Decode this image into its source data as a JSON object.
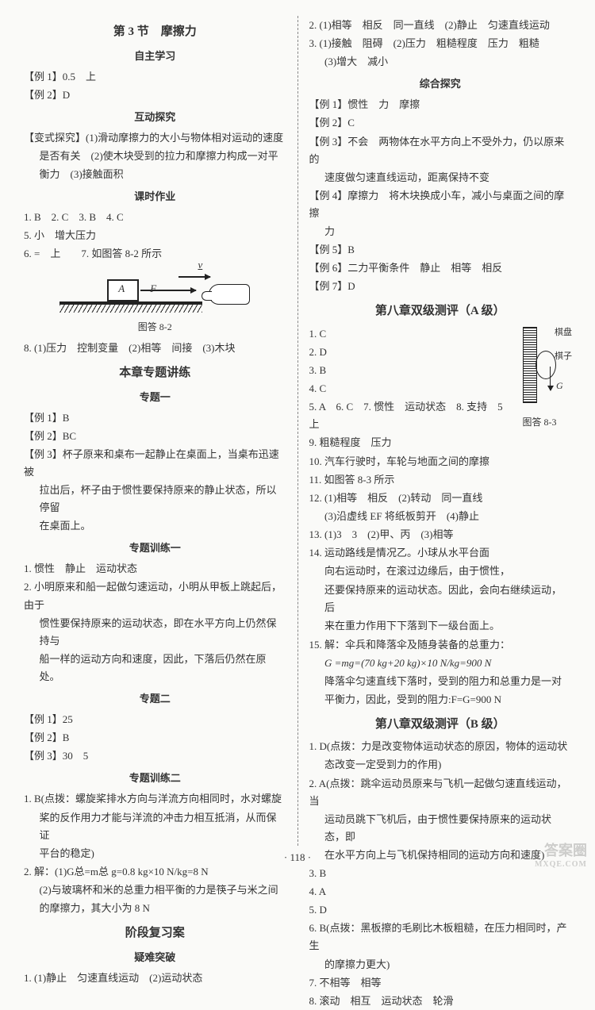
{
  "left": {
    "section_title": "第 3 节　摩擦力",
    "sub1": "自主学习",
    "ex1": "【例 1】0.5　上",
    "ex2": "【例 2】D",
    "sub2": "互动探究",
    "bianshi_l1": "【变式探究】(1)滑动摩擦力的大小与物体相对运动的速度",
    "bianshi_l2": "是否有关　(2)使木块受到的拉力和摩擦力构成一对平",
    "bianshi_l3": "衡力　(3)接触面积",
    "sub3": "课时作业",
    "hw1": "1. B　2. C　3. B　4. C",
    "hw5": "5. 小　增大压力",
    "hw6": "6. =　上　　7. 如图答 8-2 所示",
    "fig82_caption": "图答 8-2",
    "fig82_A": "A",
    "fig82_F": "F",
    "fig82_v": "v",
    "hw8": "8. (1)压力　控制变量　(2)相等　间接　(3)木块",
    "section_title2": "本章专题讲练",
    "topic1": "专题一",
    "t1_ex1": "【例 1】B",
    "t1_ex2": "【例 2】BC",
    "t1_ex3_l1": "【例 3】杯子原来和桌布一起静止在桌面上，当桌布迅速被",
    "t1_ex3_l2": "拉出后，杯子由于惯性要保持原来的静止状态，所以停留",
    "t1_ex3_l3": "在桌面上。",
    "topic1_train": "专题训练一",
    "tr1_1": "1. 惯性　静止　运动状态",
    "tr1_2_l1": "2. 小明原来和船一起做匀速运动，小明从甲板上跳起后，由于",
    "tr1_2_l2": "惯性要保持原来的运动状态，即在水平方向上仍然保持与",
    "tr1_2_l3": "船一样的运动方向和速度，因此，下落后仍然在原处。",
    "topic2": "专题二",
    "t2_ex1": "【例 1】25",
    "t2_ex2": "【例 2】B",
    "t2_ex3": "【例 3】30　5",
    "topic2_train": "专题训练二",
    "tr2_1_l1": "1. B(点拨：螺旋桨排水方向与洋流方向相同时，水对螺旋",
    "tr2_1_l2": "桨的反作用力才能与洋流的冲击力相互抵消，从而保证",
    "tr2_1_l3": "平台的稳定)",
    "tr2_2_l1": "2. 解：(1)G总=m总 g=0.8 kg×10 N/kg=8 N",
    "tr2_2_l2": "(2)与玻璃杯和米的总重力相平衡的力是筷子与米之间",
    "tr2_2_l3": "的摩擦力，其大小为 8 N",
    "stage_title": "阶段复习案",
    "stage_sub": "疑难突破",
    "stage_1": "1. (1)静止　匀速直线运动　(2)运动状态"
  },
  "right": {
    "r2": "2. (1)相等　相反　同一直线　(2)静止　匀速直线运动",
    "r3_l1": "3. (1)接触　阻碍　(2)压力　粗糙程度　压力　粗糙",
    "r3_l2": "(3)增大　减小",
    "sub1": "综合探究",
    "ex1": "【例 1】惯性　力　摩擦",
    "ex2": "【例 2】C",
    "ex3_l1": "【例 3】不会　两物体在水平方向上不受外力，仍以原来的",
    "ex3_l2": "速度做匀速直线运动，距离保持不变",
    "ex4_l1": "【例 4】摩擦力　将木块换成小车，减小与桌面之间的摩擦",
    "ex4_l2": "力",
    "ex5": "【例 5】B",
    "ex6": "【例 6】二力平衡条件　静止　相等　相反",
    "ex7": "【例 7】D",
    "test_a": "第八章双级测评（A 级）",
    "a1": "1. C",
    "a2": "2. D",
    "a3": "3. B",
    "a4": "4. C",
    "a5": "5. A　6. C　7. 惯性　运动状态　8. 支持　5　上",
    "a9": "9. 粗糙程度　压力",
    "a10": "10. 汽车行驶时，车轮与地面之间的摩擦",
    "a11": "11. 如图答 8-3 所示",
    "a12_l1": "12. (1)相等　相反　(2)转动　同一直线",
    "a12_l2": "(3)沿虚线 EF 将纸板剪开　(4)静止",
    "a13": "13. (1)3　3　(2)甲、丙　(3)相等",
    "a14_l1": "14. 运动路线是情况乙。小球从水平台面",
    "a14_l2": "向右运动时，在滚过边缘后，由于惯性，",
    "a14_l3": "还要保持原来的运动状态。因此，会向右继续运动，后",
    "a14_l4": "来在重力作用下下落到下一级台面上。",
    "a15_l1": "15. 解：伞兵和降落伞及随身装备的总重力：",
    "a15_l2": "G =mg=(70 kg+20 kg)×10 N/kg=900 N",
    "a15_l3": "降落伞匀速直线下落时，受到的阻力和总重力是一对",
    "a15_l4": "平衡力，因此，受到的阻力:F=G=900 N",
    "test_b": "第八章双级测评（B 级）",
    "b1_l1": "1. D(点拨：力是改变物体运动状态的原因，物体的运动状",
    "b1_l2": "态改变一定受到力的作用)",
    "b2_l1": "2. A(点拨：跳伞运动员原来与飞机一起做匀速直线运动，当",
    "b2_l2": "运动员跳下飞机后，由于惯性要保持原来的运动状态，即",
    "b2_l3": "在水平方向上与飞机保持相同的运动方向和速度)",
    "b3": "3. B",
    "b4": "4. A",
    "b5": "5. D",
    "b6_l1": "6. B(点拨：黑板擦的毛刷比木板粗糙，在压力相同时，产生",
    "b6_l2": "的摩擦力更大)",
    "b7": "7. 不相等　相等",
    "b8": "8. 滚动　相互　运动状态　轮滑",
    "fig83_caption": "图答 8-3",
    "fig83_t1": "棋盘",
    "fig83_t2": "棋子",
    "fig83_G": "G"
  },
  "page_num": "· 118 ·",
  "watermark_main": "答案圈",
  "watermark_sub": "MXQE.COM"
}
